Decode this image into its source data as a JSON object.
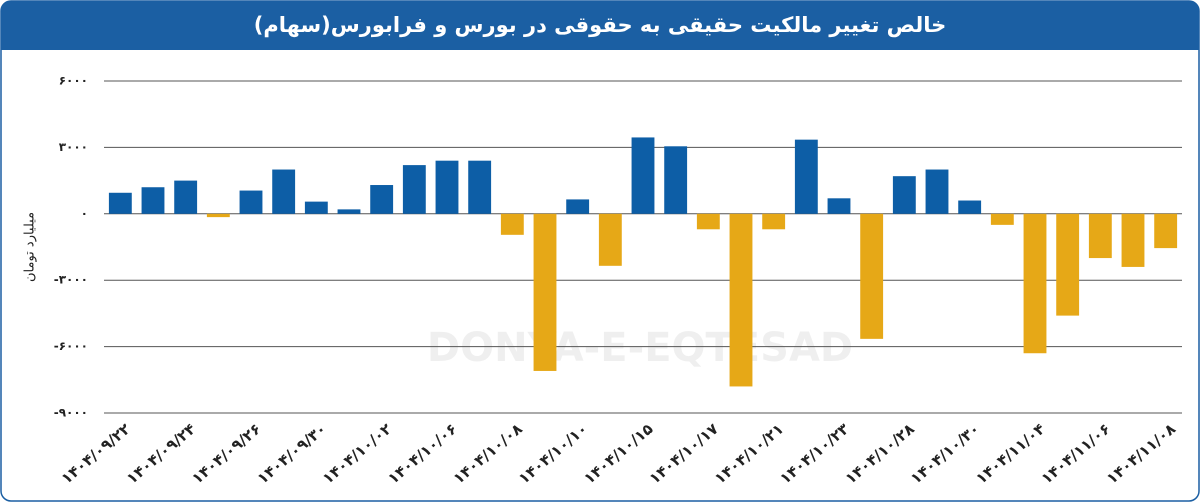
{
  "chart_data": {
    "type": "bar",
    "title": "خالص تغییر مالکیت حقیقی به حقوقی در بورس و فرابورس(سهام)",
    "ylabel": "میلیارد تومان",
    "watermark": "DONYA-E-EQTESAD",
    "categories": [
      "۱۴۰۴/۰۹/۲۲",
      null,
      "۱۴۰۴/۰۹/۲۴",
      null,
      "۱۴۰۴/۰۹/۲۶",
      null,
      "۱۴۰۴/۰۹/۳۰",
      null,
      "۱۴۰۴/۱۰/۰۲",
      null,
      "۱۴۰۴/۱۰/۰۶",
      null,
      "۱۴۰۴/۱۰/۰۸",
      null,
      "۱۴۰۴/۱۰/۱۰",
      null,
      "۱۴۰۴/۱۰/۱۵",
      null,
      "۱۴۰۴/۱۰/۱۷",
      null,
      "۱۴۰۴/۱۰/۲۱",
      null,
      "۱۴۰۴/۱۰/۲۳",
      null,
      "۱۴۰۴/۱۰/۲۸",
      null,
      "۱۴۰۴/۱۰/۳۰",
      null,
      "۱۴۰۴/۱۱/۰۴",
      null,
      "۱۴۰۴/۱۱/۰۶",
      null,
      "۱۴۰۴/۱۱/۰۸"
    ],
    "values": [
      950,
      1200,
      1500,
      -150,
      1050,
      2000,
      550,
      200,
      1300,
      2200,
      2400,
      2400,
      -950,
      -7100,
      650,
      -2350,
      3450,
      3050,
      -700,
      -7800,
      -700,
      3350,
      700,
      -5650,
      1700,
      2000,
      600,
      -500,
      -6300,
      -4600,
      -2000,
      -2400,
      -1550
    ],
    "positive_color": "#0d5ea6",
    "negative_color": "#e6a817",
    "ylim": [
      -9000,
      6000
    ],
    "yticks": [
      {
        "value": -9000,
        "label": "-۹۰۰۰"
      },
      {
        "value": -6000,
        "label": "-۶۰۰۰"
      },
      {
        "value": -3000,
        "label": "-۳۰۰۰"
      },
      {
        "value": 0,
        "label": "۰"
      },
      {
        "value": 3000,
        "label": "۳۰۰۰"
      },
      {
        "value": 6000,
        "label": "۶۰۰۰"
      }
    ],
    "grid": true
  }
}
